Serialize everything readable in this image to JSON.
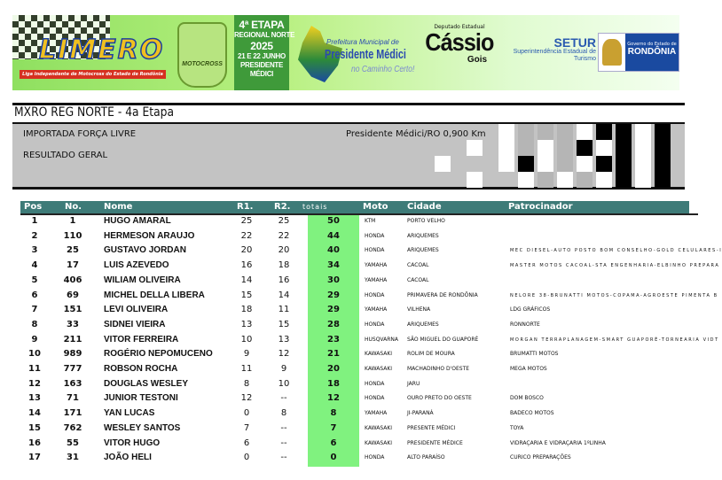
{
  "banner": {
    "limero_logo": "LIMERO",
    "limero_sub": "Liga Independente de Motocross do Estado de Rondônia",
    "moto_logo": "MOTOCROSS",
    "etapa": [
      "4ª ETAPA",
      "REGIONAL NORTE",
      "2025",
      "21 E 22 JUNHO",
      "PRESIDENTE",
      "MÉDICI"
    ],
    "pm_line1": "Prefeitura Municipal de",
    "pm_line2": "Presidente Médici",
    "pm_line3": "no Caminho Certo!",
    "cassio_top": "Deputado Estadual",
    "cassio_name": "Cássio",
    "cassio_last": "Gois",
    "setur_title": "SETUR",
    "setur_line1": "Superintendência Estadual de",
    "setur_line2": "Turismo",
    "gov_line1": "Governo do Estado de",
    "gov_line2": "RONDÔNIA"
  },
  "event_title": "MXRO REG NORTE - 4a Etapa",
  "info": {
    "category": "IMPORTADA FORÇA LIVRE",
    "result_type": "RESULTADO GERAL",
    "location": "Presidente Médici/RO 0,900 Km"
  },
  "colors": {
    "header": "#3e7b78",
    "totals": "#80f27f",
    "infobox": "#c3c3c3"
  },
  "table": {
    "headers": {
      "pos": "Pos",
      "no": "No.",
      "nome": "Nome",
      "r1": "R1.",
      "r2": "R2.",
      "totais": "totais",
      "moto": "Moto",
      "cidade": "Cidade",
      "patrocinador": "Patrocinador"
    },
    "rows": [
      {
        "pos": "1",
        "no": "1",
        "nome": "HUGO AMARAL",
        "r1": "25",
        "r2": "25",
        "tot": "50",
        "moto": "KTM",
        "cidade": "PORTO VELHO",
        "pat": ""
      },
      {
        "pos": "2",
        "no": "110",
        "nome": "HERMESON ARAUJO",
        "r1": "22",
        "r2": "22",
        "tot": "44",
        "moto": "HONDA",
        "cidade": "ARIQUEMES",
        "pat": ""
      },
      {
        "pos": "3",
        "no": "25",
        "nome": "GUSTAVO JORDAN",
        "r1": "20",
        "r2": "20",
        "tot": "40",
        "moto": "HONDA",
        "cidade": "ARIQUEMES",
        "pat": "MEC DIESEL-AUTO POSTO BOM CONSELHO-GOLD CELULARES-I"
      },
      {
        "pos": "4",
        "no": "17",
        "nome": "LUIS AZEVEDO",
        "r1": "16",
        "r2": "18",
        "tot": "34",
        "moto": "YAMAHA",
        "cidade": "CACOAL",
        "pat": "MASTER MOTOS CACOAL-STA ENGENHARIA-ELBINHO PREPARA"
      },
      {
        "pos": "5",
        "no": "406",
        "nome": "WILIAM OLIVEIRA",
        "r1": "14",
        "r2": "16",
        "tot": "30",
        "moto": "YAMAHA",
        "cidade": "CACOAL",
        "pat": ""
      },
      {
        "pos": "6",
        "no": "69",
        "nome": "MICHEL DELLA LIBERA",
        "r1": "15",
        "r2": "14",
        "tot": "29",
        "moto": "HONDA",
        "cidade": "PRIMAVERA DE RONDÔNIA",
        "pat": "NELORE 38-BRUNATTI MOTOS-COPAMA-AGROESTE PIMENTA B"
      },
      {
        "pos": "7",
        "no": "151",
        "nome": "LEVI OLIVEIRA",
        "r1": "18",
        "r2": "11",
        "tot": "29",
        "moto": "YAMAHA",
        "cidade": "VILHENA",
        "pat": "LDG GRÁFICOS"
      },
      {
        "pos": "8",
        "no": "33",
        "nome": "SIDNEI VIEIRA",
        "r1": "13",
        "r2": "15",
        "tot": "28",
        "moto": "HONDA",
        "cidade": "ARIQUEMES",
        "pat": "RONNORTE"
      },
      {
        "pos": "9",
        "no": "211",
        "nome": "VITOR FERREIRA",
        "r1": "10",
        "r2": "13",
        "tot": "23",
        "moto": "HUSQVARNA",
        "cidade": "SÃO MIGUEL DO GUAPORÉ",
        "pat": "MORGAN TERRAPLANAGEM-SMART GUAPORÉ-TORNEARIA VIDT"
      },
      {
        "pos": "10",
        "no": "989",
        "nome": "ROGÉRIO NEPOMUCENO",
        "r1": "9",
        "r2": "12",
        "tot": "21",
        "moto": "KAWASAKI",
        "cidade": "ROLIM DE MOURA",
        "pat": "BRUMATTI MOTOS"
      },
      {
        "pos": "11",
        "no": "777",
        "nome": "ROBSON ROCHA",
        "r1": "11",
        "r2": "9",
        "tot": "20",
        "moto": "KAWASAKI",
        "cidade": "MACHADINHO D'OESTE",
        "pat": "MEGA MOTOS"
      },
      {
        "pos": "12",
        "no": "163",
        "nome": "DOUGLAS WESLEY",
        "r1": "8",
        "r2": "10",
        "tot": "18",
        "moto": "HONDA",
        "cidade": "JARU",
        "pat": ""
      },
      {
        "pos": "13",
        "no": "71",
        "nome": "JUNIOR TESTONI",
        "r1": "12",
        "r2": "--",
        "tot": "12",
        "moto": "HONDA",
        "cidade": "OURO PRETO DO OESTE",
        "pat": "DOM BOSCO"
      },
      {
        "pos": "14",
        "no": "171",
        "nome": "YAN LUCAS",
        "r1": "0",
        "r2": "8",
        "tot": "8",
        "moto": "YAMAHA",
        "cidade": "JI-PARANÁ",
        "pat": "BADECO MOTOS"
      },
      {
        "pos": "15",
        "no": "762",
        "nome": "WESLEY SANTOS",
        "r1": "7",
        "r2": "--",
        "tot": "7",
        "moto": "KAWASAKI",
        "cidade": "PRESENTE MÉDICI",
        "pat": "TOYA"
      },
      {
        "pos": "16",
        "no": "55",
        "nome": "VITOR HUGO",
        "r1": "6",
        "r2": "--",
        "tot": "6",
        "moto": "KAWASAKI",
        "cidade": "PRESIDENTE MÉDICE",
        "pat": "VIDRAÇARIA E VIDRAÇARIA 1ºLINHA"
      },
      {
        "pos": "17",
        "no": "31",
        "nome": "JOÃO HELI",
        "r1": "0",
        "r2": "--",
        "tot": "0",
        "moto": "HONDA",
        "cidade": "ALTO PARAÍSO",
        "pat": "CURICO PREPARAÇÕES"
      }
    ]
  }
}
